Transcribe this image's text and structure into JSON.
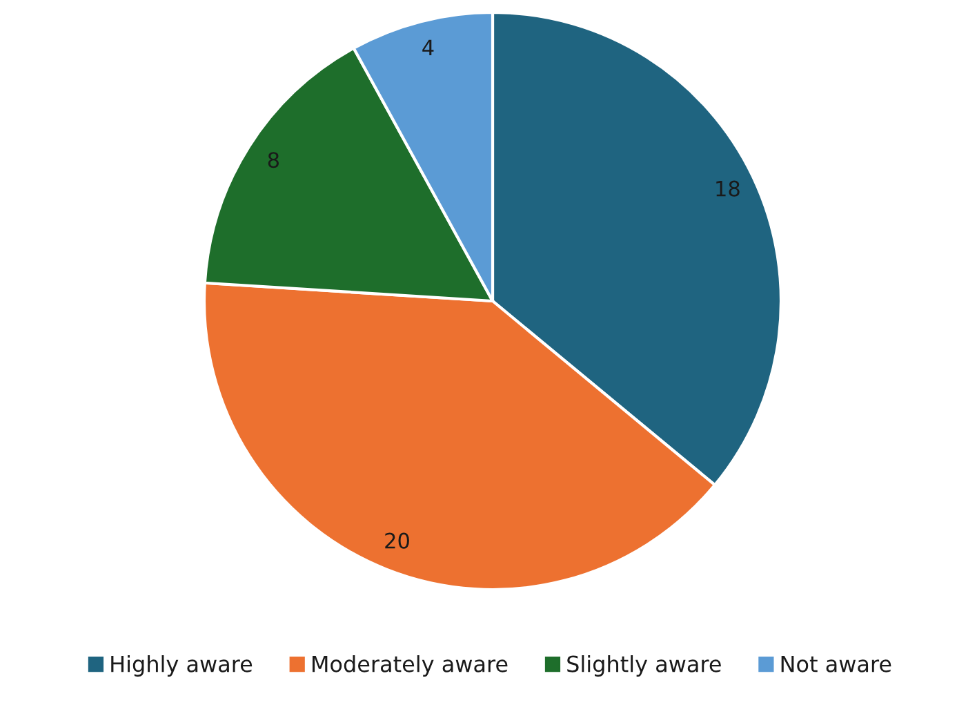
{
  "chart_data": {
    "type": "pie",
    "categories": [
      "Highly aware",
      "Moderately aware",
      "Slightly aware",
      "Not aware"
    ],
    "values": [
      18,
      20,
      8,
      4
    ],
    "colors": [
      "#1f6480",
      "#ed7130",
      "#1e6e2b",
      "#5b9bd5"
    ],
    "data_labels": true,
    "legend": "bottom"
  }
}
